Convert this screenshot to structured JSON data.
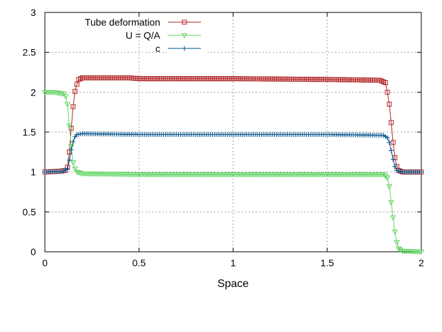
{
  "chart_data": {
    "type": "line",
    "xlabel": "Space",
    "ylabel": "",
    "xlim": [
      0,
      2
    ],
    "ylim": [
      0,
      3
    ],
    "xticks": [
      "0",
      "0.5",
      "1",
      "1.5",
      "2"
    ],
    "yticks": [
      "0",
      "0.5",
      "1",
      "1.5",
      "2",
      "2.5",
      "3"
    ],
    "grid": true,
    "legend": "top-right",
    "colors": {
      "frame": "#000000",
      "grid": "#a0a0a0"
    },
    "series": [
      {
        "name": "Tube deformation",
        "color": "#b22222",
        "marker": "square",
        "points": [
          [
            0,
            1.0
          ],
          [
            0.08,
            1.01
          ],
          [
            0.11,
            1.02
          ],
          [
            0.12,
            1.06
          ],
          [
            0.13,
            1.25
          ],
          [
            0.14,
            1.55
          ],
          [
            0.15,
            1.82
          ],
          [
            0.16,
            2.01
          ],
          [
            0.17,
            2.1
          ],
          [
            0.18,
            2.16
          ],
          [
            0.2,
            2.18
          ],
          [
            0.3,
            2.18
          ],
          [
            0.45,
            2.18
          ],
          [
            0.5,
            2.17
          ],
          [
            1.0,
            2.17
          ],
          [
            1.5,
            2.16
          ],
          [
            1.78,
            2.15
          ],
          [
            1.81,
            2.12
          ],
          [
            1.82,
            2.0
          ],
          [
            1.83,
            1.85
          ],
          [
            1.84,
            1.62
          ],
          [
            1.85,
            1.37
          ],
          [
            1.86,
            1.18
          ],
          [
            1.87,
            1.07
          ],
          [
            1.88,
            1.02
          ],
          [
            1.9,
            1.0
          ],
          [
            2.0,
            1.0
          ]
        ]
      },
      {
        "name": "U = Q/A",
        "color": "#5fd35f",
        "marker": "triangle-down",
        "points": [
          [
            0,
            2.0
          ],
          [
            0.05,
            2.0
          ],
          [
            0.1,
            1.98
          ],
          [
            0.11,
            1.95
          ],
          [
            0.12,
            1.85
          ],
          [
            0.13,
            1.58
          ],
          [
            0.14,
            1.32
          ],
          [
            0.15,
            1.12
          ],
          [
            0.16,
            1.04
          ],
          [
            0.17,
            1.0
          ],
          [
            0.2,
            0.98
          ],
          [
            0.5,
            0.97
          ],
          [
            1.0,
            0.97
          ],
          [
            1.5,
            0.97
          ],
          [
            1.8,
            0.97
          ],
          [
            1.82,
            0.93
          ],
          [
            1.83,
            0.82
          ],
          [
            1.84,
            0.62
          ],
          [
            1.85,
            0.43
          ],
          [
            1.86,
            0.25
          ],
          [
            1.87,
            0.12
          ],
          [
            1.88,
            0.04
          ],
          [
            1.9,
            0.01
          ],
          [
            2.0,
            0.0
          ]
        ]
      },
      {
        "name": "c",
        "color": "#00508c",
        "marker": "plus",
        "points": [
          [
            0,
            1.0
          ],
          [
            0.1,
            1.01
          ],
          [
            0.12,
            1.04
          ],
          [
            0.13,
            1.15
          ],
          [
            0.14,
            1.28
          ],
          [
            0.15,
            1.38
          ],
          [
            0.16,
            1.44
          ],
          [
            0.17,
            1.47
          ],
          [
            0.2,
            1.48
          ],
          [
            0.5,
            1.47
          ],
          [
            1.0,
            1.47
          ],
          [
            1.5,
            1.47
          ],
          [
            1.8,
            1.46
          ],
          [
            1.82,
            1.43
          ],
          [
            1.83,
            1.37
          ],
          [
            1.84,
            1.27
          ],
          [
            1.85,
            1.16
          ],
          [
            1.86,
            1.07
          ],
          [
            1.87,
            1.02
          ],
          [
            1.9,
            1.0
          ],
          [
            2.0,
            1.0
          ]
        ]
      }
    ]
  }
}
